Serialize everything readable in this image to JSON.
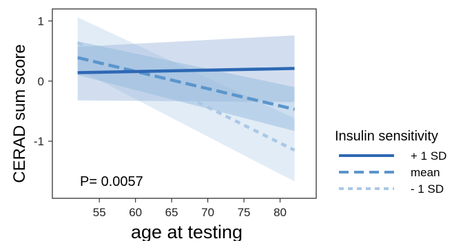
{
  "chart_data": {
    "type": "line",
    "title": "",
    "xlabel": "age at testing",
    "ylabel": "CERAD sum score",
    "xlim": [
      48.5,
      85
    ],
    "ylim": [
      -1.95,
      1.2
    ],
    "x_ticks": [
      55,
      60,
      65,
      70,
      75,
      80
    ],
    "y_ticks": [
      1,
      0,
      -1
    ],
    "x_tick_labels": [
      "55",
      "60",
      "65",
      "70",
      "75",
      "80"
    ],
    "y_tick_labels": [
      "1",
      "0",
      "-1"
    ],
    "grid": false,
    "legend_title": "Insulin sensitivity",
    "legend_position": "right",
    "annotation": "P= 0.0057",
    "colors": {
      "plus1sd": "#2e68b4",
      "mean": "#5b95cc",
      "minus1sd": "#aac8e6",
      "band_plus1sd": "#9bb5db",
      "band_mean": "#8fb6dc",
      "band_minus1sd": "#c9dcee"
    },
    "series": [
      {
        "name": "+ 1 SD",
        "style": "solid",
        "x": [
          52,
          82
        ],
        "y": [
          0.14,
          0.21
        ],
        "ci_lower": [
          -0.32,
          -0.35
        ],
        "ci_upper": [
          0.57,
          0.76
        ]
      },
      {
        "name": "mean",
        "style": "dashed",
        "x": [
          52,
          82
        ],
        "y": [
          0.39,
          -0.47
        ],
        "ci_lower": [
          0.1,
          -0.83
        ],
        "ci_upper": [
          0.66,
          -0.1
        ]
      },
      {
        "name": "- 1 SD",
        "style": "dotted",
        "x": [
          52,
          82
        ],
        "y": [
          0.64,
          -1.15
        ],
        "ci_lower": [
          0.2,
          -1.67
        ],
        "ci_upper": [
          1.06,
          -0.62
        ]
      }
    ]
  }
}
